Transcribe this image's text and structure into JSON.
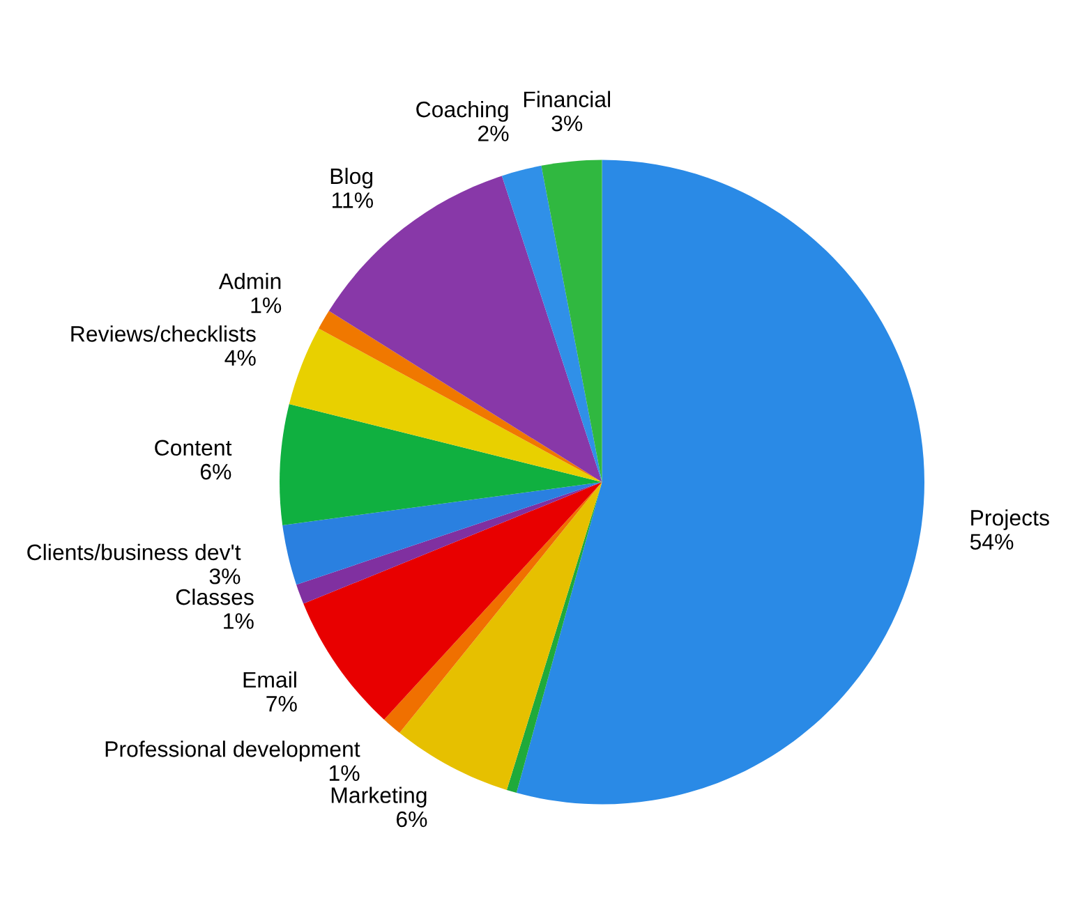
{
  "chart_data": {
    "type": "pie",
    "categories": [
      "Projects",
      null,
      "Marketing",
      "Professional development",
      "Email",
      "Classes",
      "Clients/business dev't",
      "Content",
      "Reviews/checklists",
      "Admin",
      "Blog",
      "Coaching",
      "Financial"
    ],
    "values": [
      54,
      0.5,
      6,
      1,
      7,
      1,
      3,
      6,
      4,
      1,
      11,
      2,
      3
    ],
    "colors": [
      "#2a8ae6",
      "#1faa3a",
      "#e6c000",
      "#f07000",
      "#e80000",
      "#8030a0",
      "#2a80e0",
      "#10b040",
      "#e8d000",
      "#f07800",
      "#8838a8",
      "#3090e8",
      "#30b840"
    ],
    "value_labels": [
      "54%",
      null,
      "6%",
      "1%",
      "7%",
      "1%",
      "3%",
      "6%",
      "4%",
      "1%",
      "11%",
      "2%",
      "3%"
    ]
  }
}
